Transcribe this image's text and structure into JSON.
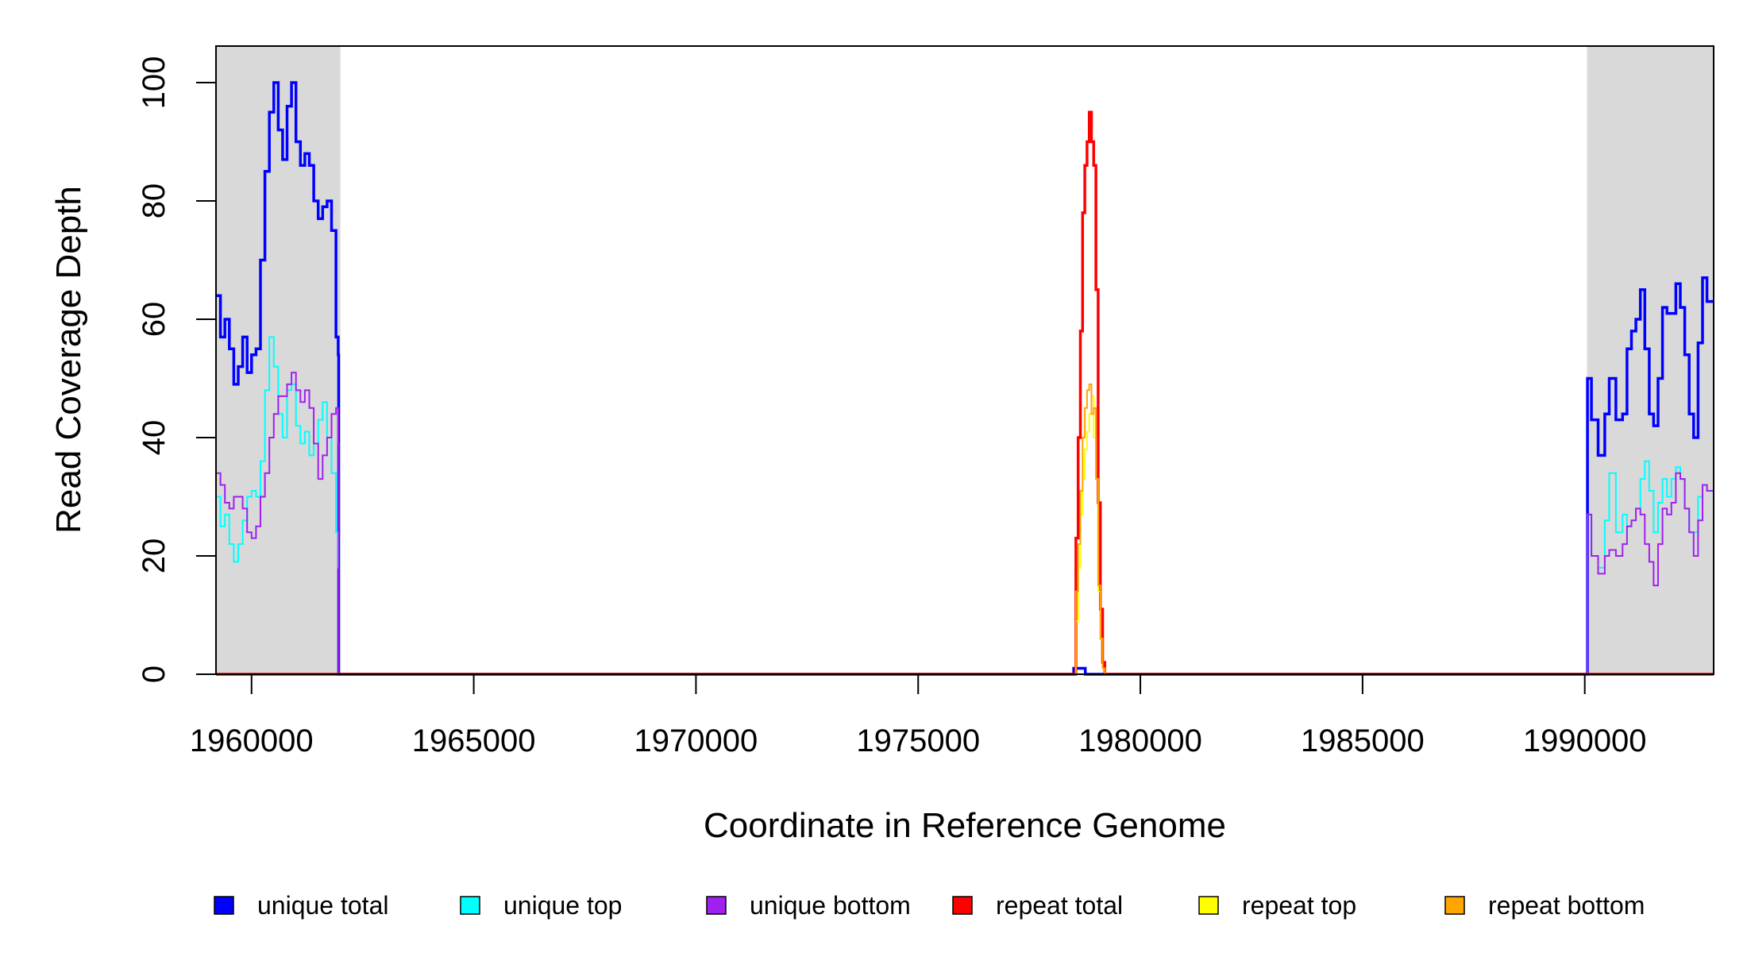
{
  "chart_data": {
    "type": "line",
    "title": "",
    "xlabel": "Coordinate in Reference Genome",
    "ylabel": "Read Coverage Depth",
    "xlim": [
      1959200,
      1992900
    ],
    "ylim": [
      0,
      104
    ],
    "x_ticks": [
      1960000,
      1965000,
      1970000,
      1975000,
      1980000,
      1985000,
      1990000
    ],
    "x_tick_labels": [
      "1960000",
      "1965000",
      "1970000",
      "1975000",
      "1980000",
      "1985000",
      "1990000"
    ],
    "y_ticks": [
      0,
      20,
      40,
      60,
      80,
      100
    ],
    "y_tick_labels": [
      "0",
      "20",
      "40",
      "60",
      "80",
      "100"
    ],
    "grid": false,
    "legend_position": "bottom",
    "shaded_regions": [
      {
        "x_start": 1959200,
        "x_end": 1962000,
        "color": "#d9d9d9"
      },
      {
        "x_start": 1990050,
        "x_end": 1992900,
        "color": "#d9d9d9"
      }
    ],
    "series": [
      {
        "name": "unique total",
        "color": "#0000ff",
        "x": [
          1959200,
          1959300,
          1959400,
          1959500,
          1959600,
          1959700,
          1959800,
          1959900,
          1960000,
          1960100,
          1960200,
          1960300,
          1960400,
          1960500,
          1960600,
          1960700,
          1960800,
          1960900,
          1961000,
          1961100,
          1961200,
          1961300,
          1961400,
          1961500,
          1961600,
          1961700,
          1961800,
          1961900,
          1961950,
          1961960,
          1978500,
          1978750,
          1978760,
          1990050,
          1990060,
          1990150,
          1990300,
          1990450,
          1990550,
          1990700,
          1990850,
          1990950,
          1991050,
          1991150,
          1991250,
          1991350,
          1991450,
          1991550,
          1991650,
          1991750,
          1991850,
          1991950,
          1992050,
          1992150,
          1992250,
          1992350,
          1992450,
          1992550,
          1992650,
          1992750,
          1992850,
          1992900
        ],
        "y": [
          64,
          57,
          60,
          55,
          49,
          52,
          57,
          51,
          54,
          55,
          70,
          85,
          95,
          100,
          92,
          87,
          96,
          100,
          90,
          86,
          88,
          86,
          80,
          77,
          79,
          80,
          75,
          57,
          54,
          0,
          1,
          1,
          0,
          0,
          50,
          43,
          37,
          44,
          50,
          43,
          44,
          55,
          58,
          60,
          65,
          55,
          44,
          42,
          50,
          62,
          61,
          61,
          66,
          62,
          54,
          44,
          40,
          56,
          67,
          63,
          63,
          63
        ]
      },
      {
        "name": "unique top",
        "color": "#00ffff",
        "x": [
          1959200,
          1959300,
          1959400,
          1959500,
          1959600,
          1959700,
          1959800,
          1959900,
          1960000,
          1960100,
          1960200,
          1960300,
          1960400,
          1960500,
          1960600,
          1960700,
          1960800,
          1960900,
          1961000,
          1961100,
          1961200,
          1961300,
          1961400,
          1961500,
          1961600,
          1961700,
          1961800,
          1961900,
          1961950,
          1961960,
          1978500,
          1978750,
          1978760,
          1990050,
          1990060,
          1990150,
          1990300,
          1990450,
          1990550,
          1990700,
          1990850,
          1990950,
          1991050,
          1991150,
          1991250,
          1991350,
          1991450,
          1991550,
          1991650,
          1991750,
          1991850,
          1991950,
          1992050,
          1992150,
          1992250,
          1992350,
          1992450,
          1992550,
          1992650,
          1992750,
          1992850,
          1992900
        ],
        "y": [
          30,
          25,
          27,
          22,
          19,
          22,
          26,
          30,
          31,
          30,
          36,
          48,
          57,
          52,
          44,
          40,
          48,
          49,
          42,
          39,
          41,
          37,
          39,
          43,
          46,
          40,
          34,
          24,
          18,
          0,
          0,
          0,
          0,
          0,
          27,
          20,
          18,
          26,
          34,
          24,
          27,
          25,
          26,
          28,
          33,
          36,
          31,
          24,
          29,
          33,
          30,
          33,
          35,
          33,
          28,
          24,
          24,
          30,
          32,
          31,
          31,
          31
        ]
      },
      {
        "name": "unique bottom",
        "color": "#a020f0",
        "x": [
          1959200,
          1959300,
          1959400,
          1959500,
          1959600,
          1959700,
          1959800,
          1959900,
          1960000,
          1960100,
          1960200,
          1960300,
          1960400,
          1960500,
          1960600,
          1960700,
          1960800,
          1960900,
          1961000,
          1961100,
          1961200,
          1961300,
          1961400,
          1961500,
          1961600,
          1961700,
          1961800,
          1961900,
          1961950,
          1961960,
          1978500,
          1978750,
          1978760,
          1990050,
          1990060,
          1990150,
          1990300,
          1990450,
          1990550,
          1990700,
          1990850,
          1990950,
          1991050,
          1991150,
          1991250,
          1991350,
          1991450,
          1991550,
          1991650,
          1991750,
          1991850,
          1991950,
          1992050,
          1992150,
          1992250,
          1992350,
          1992450,
          1992550,
          1992650,
          1992750,
          1992850,
          1992900
        ],
        "y": [
          34,
          32,
          29,
          28,
          30,
          30,
          28,
          24,
          23,
          25,
          30,
          34,
          40,
          44,
          47,
          47,
          49,
          51,
          48,
          46,
          48,
          45,
          39,
          33,
          37,
          40,
          44,
          45,
          39,
          0,
          0,
          0,
          0,
          0,
          27,
          20,
          17,
          20,
          21,
          20,
          22,
          25,
          26,
          28,
          27,
          22,
          19,
          15,
          22,
          28,
          27,
          29,
          34,
          33,
          28,
          24,
          20,
          26,
          32,
          31,
          31,
          31
        ]
      },
      {
        "name": "repeat total",
        "color": "#ff0000",
        "x": [
          1959200,
          1978500,
          1978550,
          1978600,
          1978650,
          1978700,
          1978750,
          1978800,
          1978850,
          1978900,
          1978950,
          1979000,
          1979050,
          1979100,
          1979150,
          1979200,
          1979250,
          1979300,
          1979350,
          1992900
        ],
        "y": [
          0,
          0,
          23,
          40,
          58,
          78,
          86,
          90,
          95,
          90,
          86,
          65,
          29,
          11,
          2,
          0,
          0,
          0,
          0,
          0
        ]
      },
      {
        "name": "repeat top",
        "color": "#ffff00",
        "x": [
          1959200,
          1978500,
          1978550,
          1978600,
          1978650,
          1978700,
          1978750,
          1978800,
          1978850,
          1978900,
          1978950,
          1979000,
          1979050,
          1979100,
          1979150,
          1979200,
          1979250,
          1979300,
          1979350,
          1992900
        ],
        "y": [
          0,
          0,
          9,
          18,
          27,
          33,
          38,
          41,
          44,
          47,
          40,
          33,
          14,
          6,
          1,
          0,
          0,
          0,
          0,
          0
        ]
      },
      {
        "name": "repeat bottom",
        "color": "#ffa500",
        "x": [
          1959200,
          1978500,
          1978550,
          1978600,
          1978650,
          1978700,
          1978750,
          1978800,
          1978850,
          1978900,
          1978950,
          1979000,
          1979050,
          1979100,
          1979150,
          1979200,
          1979250,
          1979300,
          1979350,
          1992900
        ],
        "y": [
          0,
          0,
          14,
          22,
          31,
          40,
          45,
          48,
          49,
          44,
          45,
          33,
          15,
          6,
          1,
          0,
          0,
          0,
          0,
          0
        ]
      }
    ]
  }
}
